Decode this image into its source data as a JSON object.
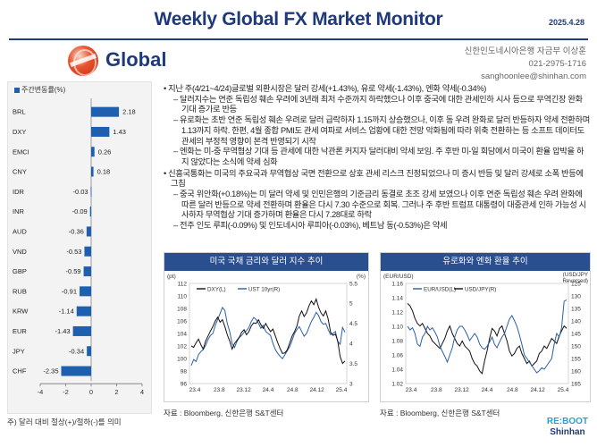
{
  "header": {
    "title": "Weekly Global FX Market Monitor",
    "date": "2025.4.28"
  },
  "brand": {
    "section_label": "Global"
  },
  "author": {
    "line1": "신한인도네시아은행 자금부 이상훈",
    "line2": "021-2975-1716",
    "line3": "sanghoonlee@shinhan.com"
  },
  "footnote": "주) 달러 대비 절상(+)/절하(-)를 의미",
  "body_text": [
    {
      "level": 1,
      "text": "• 지난 주(4/21~4/24)글로벌 외환시장은 달러 강세(+1.43%), 유로 약세(-1.43%), 엔화 약세(-0.34%)"
    },
    {
      "level": 2,
      "text": "– 달러지수는 연준 독립성 훼손 우려에 3년래 최저 수준까지 하락했으나 이후 중국에 대한 관세인하 시사 등으로 무역긴장 완화 기대 증가로 반등"
    },
    {
      "level": 2,
      "text": "– 유로화는 초반 연준 독립성 훼손 우려로 달러 급락하자 1.15까지 상승했으나, 이후 동 우려 완화로 달러 반등하자 약세 전환하며 1.13까지 하락. 한편, 4월 종합 PMI도 관세 여파로 서비스 업황에 대한 전망 악화됨에 따라 위축 전환하는 등 소프트 데이터도 관세의 부정적 영향이 본격 반영되기 시작"
    },
    {
      "level": 2,
      "text": "– 엔화는 미-중 무역협상 기대 등 관세에 대한 낙관론 커지자 달러대비 약세 보임. 주 후반 미-일 회담에서 미국이 환율 압박을 하지 않았다는 소식에 약세 심화"
    },
    {
      "level": 1,
      "text": "• 신흥국통화는 미국의 주요국과 무역협상 국면 전환으로 상호 관세 리스크 진정되었으나 미 증시 반등 및 달러 강세로 소폭 반등에 그침"
    },
    {
      "level": 2,
      "text": "– 중국 위안화(+0.18%)는 미 달러 약세 및 인민은행의 기준금리 동결로 초조 강세 보였으나 이후 연준 독립성 훼손 우려 완화에 따른 달러 반등으로 약세 전환하며 환율은 다시 7.30 수준으로 회복. 그러나 주 후반 트럼프 대통령이 대중관세 인하 가능성 시사하자 무역협상 기대 증가하며 환율은 다시 7.28대로 하락"
    },
    {
      "level": 2,
      "text": "– 전주 인도 루피(-0.09%) 및 인도네시아 루피아(-0.03%), 베트남 동(-0.53%)은 약세"
    }
  ],
  "chart_data": [
    {
      "type": "bar",
      "orientation": "horizontal",
      "legend": "주간변동률(%)",
      "categories": [
        "BRL",
        "DXY",
        "EMCI",
        "CNY",
        "IDR",
        "INR",
        "AUD",
        "VND",
        "GBP",
        "RUB",
        "KRW",
        "EUR",
        "JPY",
        "CHF"
      ],
      "values": [
        2.18,
        1.43,
        0.26,
        0.18,
        -0.03,
        -0.09,
        -0.36,
        -0.53,
        -0.59,
        -0.91,
        -1.14,
        -1.43,
        -0.34,
        -2.35
      ],
      "value_labels": [
        "2.18",
        "1.43",
        "0.26",
        "0.18",
        "-0.03",
        "-0.09",
        "-0.36",
        "-0.53",
        "-0.59",
        "-0.91",
        "-1.14",
        "-1.43",
        "-0.34",
        "-2.35"
      ],
      "xlim": [
        -4,
        4
      ],
      "xticks": [
        "-4",
        "-2",
        "0",
        "2",
        "4"
      ],
      "colors": {
        "bar": "#1f5fb0"
      }
    },
    {
      "type": "line",
      "title": "미국 국채 금리와 달러 지수 추이",
      "source": "자료 : Bloomberg, 신한은행 S&T센터",
      "left_unit": "(pt)",
      "right_unit": "(%)",
      "series": [
        {
          "name": "DXY(L)",
          "axis": "left",
          "color": "#111111"
        },
        {
          "name": "UST 10yr(R)",
          "axis": "right",
          "color": "#2b5ea8"
        }
      ],
      "x_ticks": [
        "23.4",
        "23.8",
        "23.12",
        "24.4",
        "24.8",
        "24.12",
        "25.4"
      ],
      "left_ticks": [
        "112",
        "110",
        "108",
        "106",
        "104",
        "102",
        "100",
        "98",
        "96"
      ],
      "right_ticks": [
        "5.5",
        "5",
        "4.5",
        "4",
        "3.5",
        "3"
      ],
      "left_lim": [
        96,
        112
      ],
      "right_lim": [
        3,
        5.5
      ],
      "dxy": [
        102,
        101.8,
        102.5,
        103.1,
        102.2,
        101.5,
        102.8,
        103.6,
        104.4,
        105.1,
        106.0,
        106.6,
        105.8,
        106.2,
        105.1,
        103.8,
        102.8,
        101.5,
        102.4,
        102.9,
        103.4,
        104.2,
        104.6,
        103.8,
        104.3,
        105.2,
        105.7,
        105.6,
        106.2,
        105.4,
        104.8,
        105.6,
        104.9,
        104.3,
        104.7,
        103.6,
        102.5,
        101.6,
        100.8,
        100.9,
        101.4,
        102.5,
        103.6,
        104.3,
        105.2,
        106.8,
        107.6,
        106.7,
        107.3,
        108.4,
        109.2,
        108.6,
        109.5,
        108.2,
        107.3,
        106.8,
        107.6,
        106.3,
        104.2,
        103.7,
        103.9,
        102.8,
        100.3,
        99.2,
        99.6
      ],
      "ust10y": [
        3.45,
        3.6,
        3.55,
        3.72,
        3.8,
        3.85,
        3.95,
        4.1,
        4.2,
        4.25,
        4.45,
        4.6,
        4.75,
        4.9,
        4.82,
        4.5,
        4.3,
        4.0,
        3.9,
        4.05,
        4.15,
        4.2,
        4.28,
        4.32,
        4.4,
        4.55,
        4.65,
        4.6,
        4.5,
        4.38,
        4.45,
        4.3,
        4.25,
        4.2,
        4.0,
        3.85,
        3.75,
        3.68,
        3.62,
        3.72,
        3.82,
        3.92,
        4.08,
        4.25,
        4.35,
        4.42,
        4.3,
        4.18,
        4.25,
        4.4,
        4.55,
        4.65,
        4.78,
        4.7,
        4.55,
        4.48,
        4.5,
        4.35,
        4.22,
        4.25,
        4.3,
        4.05,
        3.98,
        4.4,
        4.28
      ]
    },
    {
      "type": "line",
      "title": "유로화와 엔화 환율 추이",
      "source": "자료 : Bloomberg, 신한은행 S&T센터",
      "left_unit": "(EUR/USD)",
      "right_unit": "(USD/JPY, Reversed)",
      "series": [
        {
          "name": "EUR/USD(L)",
          "axis": "left",
          "color": "#2b5ea8"
        },
        {
          "name": "USD/JPY(R)",
          "axis": "right",
          "color": "#111111"
        }
      ],
      "x_ticks": [
        "23.4",
        "23.8",
        "23.12",
        "24.4",
        "24.8",
        "24.12",
        "25.4"
      ],
      "left_ticks": [
        "1.16",
        "1.14",
        "1.12",
        "1.10",
        "1.08",
        "1.06",
        "1.04",
        "1.02"
      ],
      "right_ticks": [
        "125",
        "130",
        "135",
        "140",
        "145",
        "150",
        "155",
        "160",
        "165"
      ],
      "left_lim": [
        1.02,
        1.16
      ],
      "right_lim_reversed": [
        165,
        125
      ],
      "eurusd": [
        1.1,
        1.095,
        1.098,
        1.09,
        1.075,
        1.072,
        1.085,
        1.09,
        1.1,
        1.095,
        1.098,
        1.092,
        1.085,
        1.072,
        1.065,
        1.058,
        1.05,
        1.06,
        1.07,
        1.085,
        1.095,
        1.1,
        1.1,
        1.095,
        1.088,
        1.08,
        1.085,
        1.09,
        1.085,
        1.075,
        1.07,
        1.068,
        1.072,
        1.078,
        1.085,
        1.075,
        1.07,
        1.078,
        1.085,
        1.09,
        1.1,
        1.11,
        1.115,
        1.108,
        1.1,
        1.088,
        1.075,
        1.06,
        1.055,
        1.05,
        1.045,
        1.04,
        1.035,
        1.038,
        1.042,
        1.04,
        1.045,
        1.05,
        1.055,
        1.075,
        1.09,
        1.085,
        1.098,
        1.135,
        1.137
      ],
      "usdjpy": [
        133,
        134,
        136,
        139,
        141,
        142,
        141,
        143,
        145,
        146,
        148,
        149,
        150,
        151,
        149,
        147,
        144,
        142,
        145,
        147,
        149,
        150,
        148,
        150,
        151,
        152,
        155,
        157,
        158,
        160,
        161,
        156,
        152,
        147,
        143,
        144,
        146,
        143,
        142,
        145,
        148,
        152,
        154,
        153,
        151,
        150,
        153,
        155,
        157,
        156,
        158,
        157,
        156,
        153,
        152,
        150,
        151,
        149,
        147,
        148,
        149,
        146,
        144,
        142,
        143
      ]
    }
  ]
}
